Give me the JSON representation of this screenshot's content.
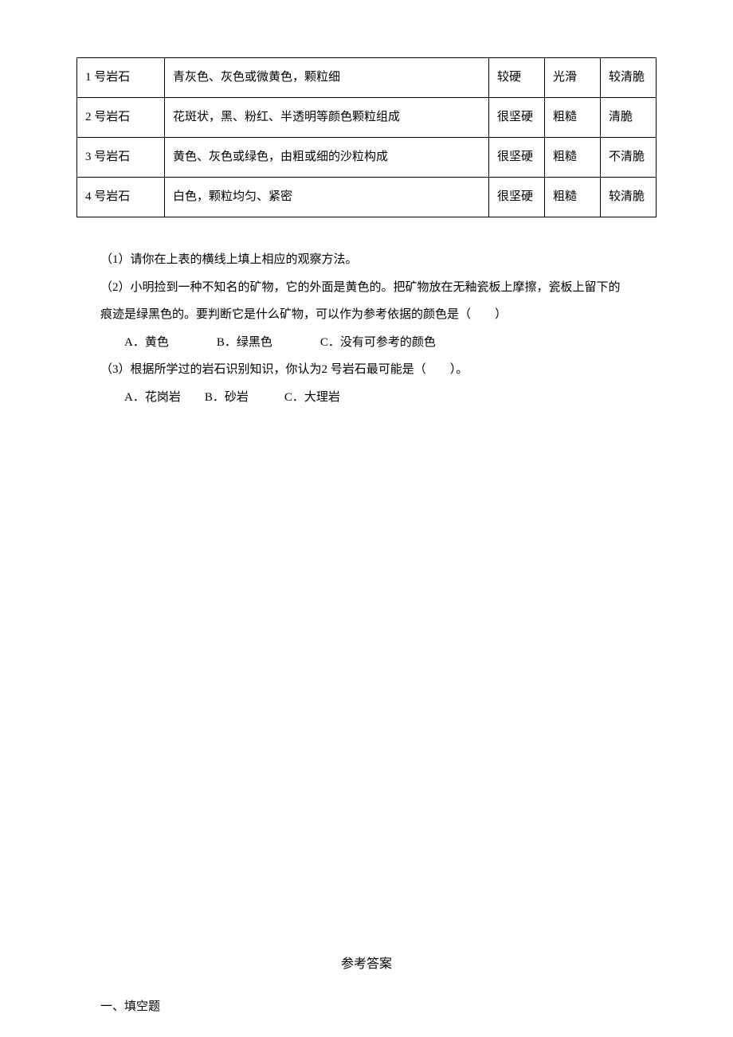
{
  "table": {
    "rows": [
      {
        "name": "1 号岩石",
        "desc": "青灰色、灰色或微黄色，颗粒细",
        "hardness": "较硬",
        "surface": "光滑",
        "brittle": "较清脆"
      },
      {
        "name": "2 号岩石",
        "desc": "花斑状，黑、粉红、半透明等颜色颗粒组成",
        "hardness": "很坚硬",
        "surface": "粗糙",
        "brittle": "清脆"
      },
      {
        "name": "3 号岩石",
        "desc": "黄色、灰色或绿色，由粗或细的沙粒构成",
        "hardness": "很坚硬",
        "surface": "粗糙",
        "brittle": "不清脆"
      },
      {
        "name": "4 号岩石",
        "desc": "白色，颗粒均匀、紧密",
        "hardness": "很坚硬",
        "surface": "粗糙",
        "brittle": "较清脆"
      }
    ]
  },
  "questions": {
    "q1": "（1）请你在上表的横线上填上相应的观察方法。",
    "q2_l1": "（2）小明捡到一种不知名的矿物，它的外面是黄色的。把矿物放在无釉瓷板上摩擦，瓷板上留下的",
    "q2_l2": "痕迹是绿黑色的。要判断它是什么矿物，可以作为参考依据的颜色是（　　）",
    "q2_opts": "A．黄色　　　　B．绿黑色　　　　C．没有可参考的颜色",
    "q3_l1": "（3）根据所学过的岩石识别知识，你认为2 号岩石最可能是（　　）。",
    "q3_opts": "A．花岗岩　　B．砂岩　　　C．大理岩"
  },
  "answers": {
    "title": "参考答案",
    "section1": "一、填空题"
  },
  "colors": {
    "text": "#000000",
    "background": "#ffffff",
    "border": "#000000"
  },
  "typography": {
    "font_family": "SimSun",
    "body_fontsize": 15,
    "line_height": 2.3
  }
}
